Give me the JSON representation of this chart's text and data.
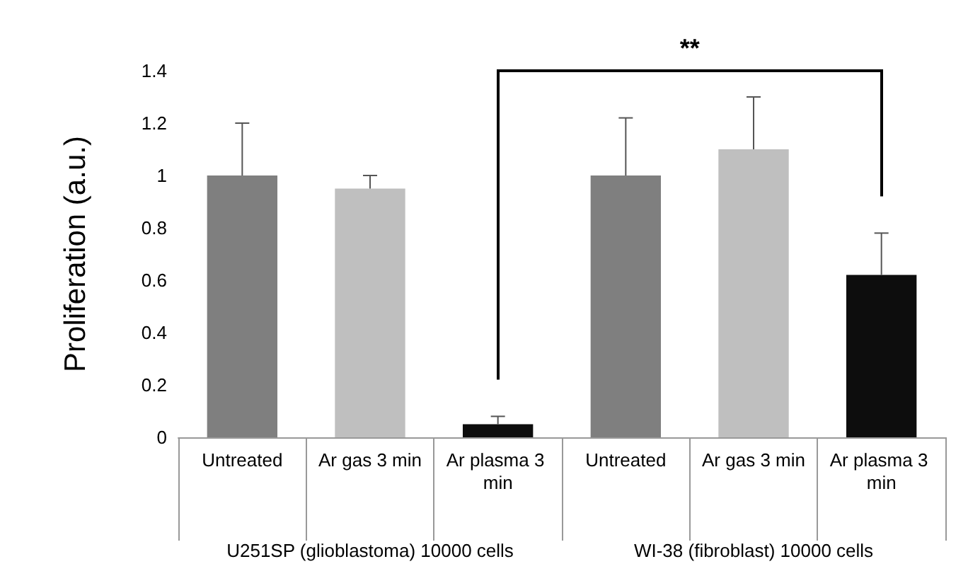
{
  "chart_data": {
    "type": "bar",
    "ylabel": "Proliferation (a.u.)",
    "categories": [
      "Untreated",
      "Ar gas 3 min",
      "Ar plasma 3 min",
      "Untreated",
      "Ar gas 3 min",
      "Ar plasma 3 min"
    ],
    "values": [
      1.0,
      0.95,
      0.05,
      1.0,
      1.1,
      0.62
    ],
    "colors": [
      "#7f7f7f",
      "#bfbfbf",
      "#0d0d0d",
      "#7f7f7f",
      "#bfbfbf",
      "#0d0d0d"
    ],
    "errors": [
      0.2,
      0.05,
      0.03,
      0.22,
      0.2,
      0.16
    ],
    "ylim": [
      0,
      1.4
    ],
    "yticks": [
      0,
      0.2,
      0.4,
      0.6,
      0.8,
      1,
      1.2,
      1.4
    ],
    "grid": false,
    "annotations": [
      "U251SP (glioblastoma) 10000 cells",
      "WI-38 (fibroblast) 10000 cells",
      "**"
    ]
  }
}
